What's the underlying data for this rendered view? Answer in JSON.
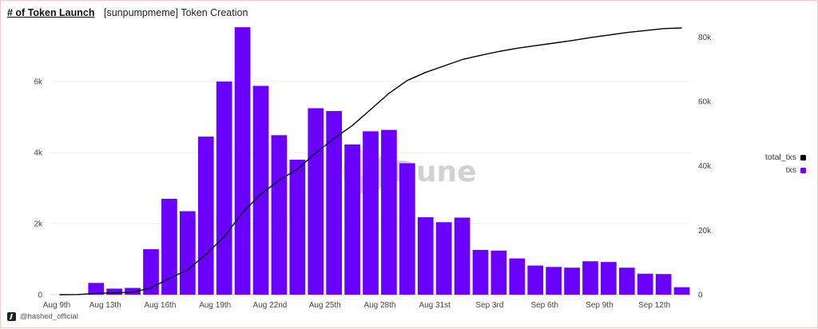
{
  "header": {
    "title": "# of Token Launch",
    "subtitle": "[sunpumpmeme] Token Creation"
  },
  "footer": {
    "handle": "@hashed_official",
    "icon": "hashed-logo-icon"
  },
  "watermark": {
    "text": "Dune"
  },
  "legend": [
    {
      "label": "total_txs",
      "color": "#000000"
    },
    {
      "label": "txs",
      "color": "#6a00ff"
    }
  ],
  "chart_data": {
    "type": "bar+line",
    "x_tick_labels": [
      "Aug 9th",
      "Aug 13th",
      "Aug 16th",
      "Aug 19th",
      "Aug 22nd",
      "Aug 25th",
      "Aug 28th",
      "Aug 31st",
      "Sep 3rd",
      "Sep 6th",
      "Sep 9th",
      "Sep 12th"
    ],
    "x_tick_indices": [
      0,
      3,
      6,
      9,
      12,
      15,
      18,
      21,
      24,
      27,
      30,
      33
    ],
    "left_axis": {
      "ticks": [
        0,
        2000,
        4000,
        6000
      ],
      "tick_labels": [
        "0",
        "2k",
        "4k",
        "6k"
      ],
      "range": [
        0,
        7600
      ]
    },
    "right_axis": {
      "ticks": [
        0,
        20000,
        40000,
        60000,
        80000
      ],
      "tick_labels": [
        "0",
        "20k",
        "40k",
        "60k",
        "80k"
      ],
      "range": [
        0,
        83800
      ]
    },
    "gridlines": true,
    "legend_position": "right",
    "series": [
      {
        "name": "txs",
        "type": "bar",
        "axis": "left",
        "color": "#6a00ff",
        "values": [
          0,
          0,
          330,
          170,
          190,
          1280,
          2700,
          2350,
          4450,
          6000,
          7530,
          5880,
          4490,
          3800,
          5250,
          5170,
          4230,
          4600,
          4640,
          3700,
          2180,
          2040,
          2170,
          1260,
          1240,
          1020,
          820,
          780,
          760,
          940,
          920,
          760,
          590,
          580,
          210
        ]
      },
      {
        "name": "total_txs",
        "type": "line",
        "axis": "right",
        "color": "#000000",
        "values": [
          0,
          60,
          400,
          580,
          780,
          2100,
          5000,
          7700,
          12500,
          18000,
          25500,
          31200,
          35500,
          39000,
          44000,
          48500,
          52500,
          57500,
          62500,
          66500,
          69000,
          71000,
          73000,
          74300,
          75500,
          76500,
          77300,
          78100,
          78900,
          79800,
          80600,
          81400,
          82000,
          82600,
          82800
        ]
      }
    ]
  }
}
